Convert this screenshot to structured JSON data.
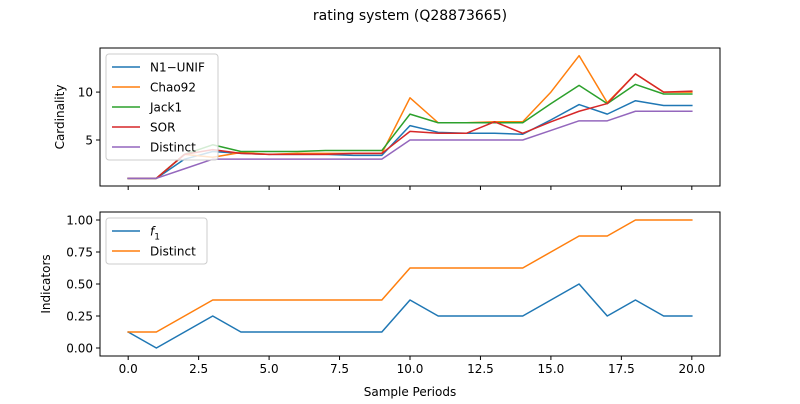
{
  "figure": {
    "title": "rating system (Q28873665)"
  },
  "chart_data": [
    {
      "type": "line",
      "ylabel": "Cardinality",
      "xlabel": "",
      "xlim": [
        -1.0,
        21.0
      ],
      "ylim": [
        0.2,
        14.6
      ],
      "xticks": [
        0,
        2.5,
        5,
        7.5,
        10,
        12.5,
        15,
        17.5,
        20
      ],
      "yticks": [
        5,
        10
      ],
      "ytick_labels": [
        "5",
        "10"
      ],
      "xtick_labels_visible": false,
      "legend": "upper-left",
      "x": [
        0,
        1,
        2,
        3,
        4,
        5,
        6,
        7,
        8,
        9,
        10,
        11,
        12,
        13,
        14,
        15,
        16,
        17,
        18,
        19,
        20
      ],
      "series": [
        {
          "name": "N1−UNIF",
          "color": "#1f77b4",
          "values": [
            1,
            1,
            3,
            3.8,
            3.6,
            3.5,
            3.5,
            3.5,
            3.4,
            3.4,
            6.5,
            5.8,
            5.7,
            5.7,
            5.6,
            7.1,
            8.7,
            7.7,
            9.1,
            8.6,
            8.6
          ]
        },
        {
          "name": "Chao92",
          "color": "#ff7f0e",
          "values": [
            1,
            1,
            3.5,
            3.2,
            3.7,
            3.5,
            3.6,
            3.6,
            3.6,
            3.6,
            9.4,
            6.8,
            6.8,
            6.9,
            6.9,
            10,
            13.8,
            8.9,
            11.9,
            10,
            10
          ]
        },
        {
          "name": "Jack1",
          "color": "#2ca02c",
          "values": [
            1,
            1,
            3.5,
            4.5,
            3.8,
            3.8,
            3.8,
            3.9,
            3.9,
            3.9,
            7.7,
            6.8,
            6.8,
            6.8,
            6.8,
            8.8,
            10.7,
            8.8,
            10.8,
            9.8,
            9.8
          ]
        },
        {
          "name": "SOR",
          "color": "#d62728",
          "values": [
            1,
            1,
            3.5,
            4,
            3.6,
            3.5,
            3.5,
            3.5,
            3.6,
            3.6,
            5.9,
            5.7,
            5.7,
            6.9,
            5.7,
            6.9,
            8,
            8.8,
            11.9,
            10,
            10.1
          ]
        },
        {
          "name": "Distinct",
          "color": "#9467bd",
          "values": [
            1,
            1,
            2,
            3,
            3,
            3,
            3,
            3,
            3,
            3,
            5,
            5,
            5,
            5,
            5,
            6,
            7,
            7,
            8,
            8,
            8
          ]
        }
      ]
    },
    {
      "type": "line",
      "ylabel": "Indicators",
      "xlabel": "Sample Periods",
      "xlim": [
        -1.0,
        21.0
      ],
      "ylim": [
        -0.0625,
        1.0625
      ],
      "xticks": [
        0,
        2.5,
        5,
        7.5,
        10,
        12.5,
        15,
        17.5,
        20
      ],
      "xtick_labels": [
        "0.0",
        "2.5",
        "5.0",
        "7.5",
        "10.0",
        "12.5",
        "15.0",
        "17.5",
        "20.0"
      ],
      "yticks": [
        0,
        0.25,
        0.5,
        0.75,
        1.0
      ],
      "ytick_labels": [
        "0.00",
        "0.25",
        "0.50",
        "0.75",
        "1.00"
      ],
      "legend": "upper-left",
      "x": [
        0,
        1,
        2,
        3,
        4,
        5,
        6,
        7,
        8,
        9,
        10,
        11,
        12,
        13,
        14,
        15,
        16,
        17,
        18,
        19,
        20
      ],
      "series": [
        {
          "name": "f1",
          "legend_html": "<tspan font-style=\"italic\">f</tspan><tspan font-size=\"9\" dy=\"4\">1</tspan>",
          "color": "#1f77b4",
          "values": [
            0.125,
            0,
            0.125,
            0.25,
            0.125,
            0.125,
            0.125,
            0.125,
            0.125,
            0.125,
            0.375,
            0.25,
            0.25,
            0.25,
            0.25,
            0.375,
            0.5,
            0.25,
            0.375,
            0.25,
            0.25
          ]
        },
        {
          "name": "Distinct",
          "color": "#ff7f0e",
          "values": [
            0.125,
            0.125,
            0.25,
            0.375,
            0.375,
            0.375,
            0.375,
            0.375,
            0.375,
            0.375,
            0.625,
            0.625,
            0.625,
            0.625,
            0.625,
            0.75,
            0.875,
            0.875,
            1,
            1,
            1
          ]
        }
      ]
    }
  ]
}
